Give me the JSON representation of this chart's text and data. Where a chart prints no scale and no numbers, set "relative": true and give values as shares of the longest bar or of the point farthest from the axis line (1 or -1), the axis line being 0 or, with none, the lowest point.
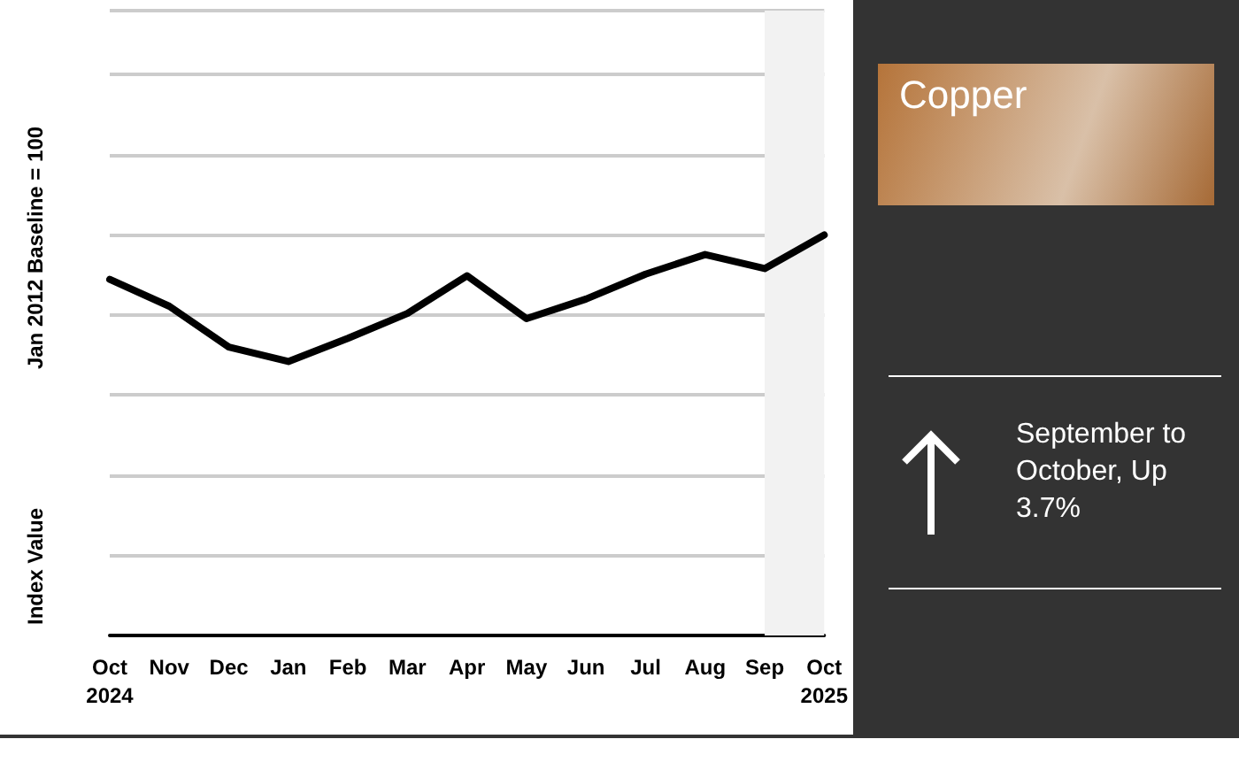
{
  "chart_data": {
    "type": "line",
    "title": "Copper",
    "ylabel": "Jan 2012 Baseline = 100",
    "annotations": [
      "Index Value",
      "September to October, Up 3.7%"
    ],
    "categories": [
      "Oct\n2024",
      "Nov",
      "Dec",
      "Jan",
      "Feb",
      "Mar",
      "Apr",
      "May",
      "Jun",
      "Jul",
      "Aug",
      "Sep",
      "Oct\n2025"
    ],
    "relative": true,
    "series": [
      {
        "color": "#000000",
        "values": [
          0.889,
          0.822,
          0.72,
          0.684,
          0.742,
          0.804,
          0.898,
          0.791,
          0.84,
          0.902,
          0.951,
          0.916,
          1
        ]
      }
    ],
    "bands": [
      {
        "axis": "x",
        "from": "Sep",
        "to": "Oct\n2025",
        "color": "#f2f2f2"
      }
    ],
    "grid": "y",
    "marker": "none",
    "line_style": "solid"
  }
}
